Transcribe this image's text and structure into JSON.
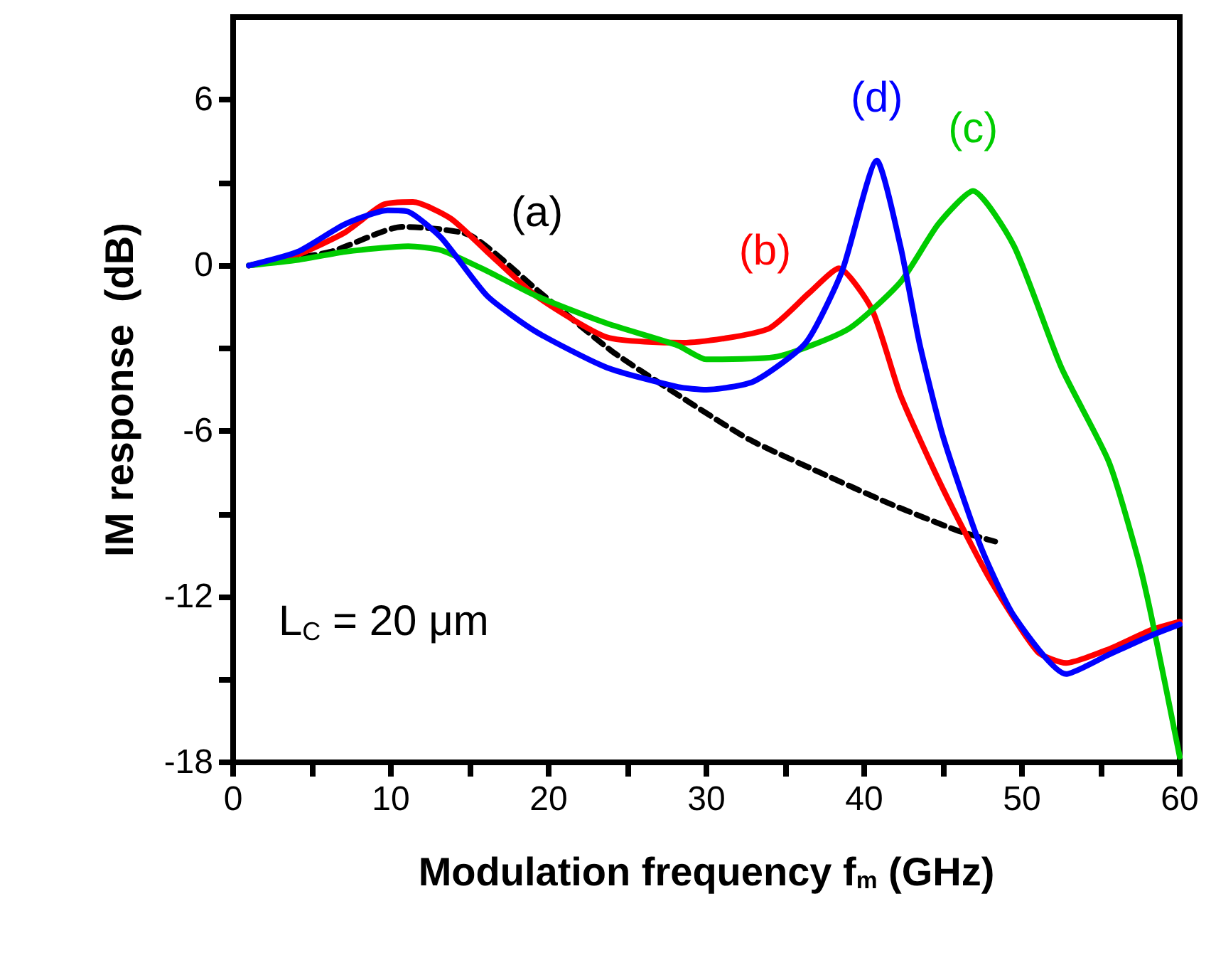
{
  "chart_data": {
    "type": "line",
    "xlabel": "Modulation frequency f$_{m}$ (GHz)",
    "ylabel": "IM response  (dB)",
    "xlim": [
      0,
      60
    ],
    "ylim": [
      -18,
      9
    ],
    "xticks": [
      0,
      {
        "value": 5,
        "label": null
      },
      10,
      {
        "value": 15,
        "label": null
      },
      20,
      {
        "value": 25,
        "label": null
      },
      30,
      {
        "value": 35,
        "label": null
      },
      40,
      {
        "value": 45,
        "label": null
      },
      50,
      {
        "value": 55,
        "label": null
      },
      60
    ],
    "yticks": [
      -18,
      {
        "value": -15,
        "label": null
      },
      -12,
      {
        "value": -9,
        "label": null
      },
      -6,
      {
        "value": -3,
        "label": null
      },
      0,
      {
        "value": 3,
        "label": null
      },
      6
    ],
    "grid": false,
    "marker": "none",
    "series": [
      {
        "name": "(a)",
        "color": "#000000",
        "line_style": "dashed",
        "x": [
          1,
          6.2,
          10.7,
          15,
          19.5,
          24,
          28.5,
          32.7,
          37.2,
          41.5,
          45.9,
          48.3
        ],
        "values": [
          0,
          0.5,
          1.4,
          1.1,
          -1.0,
          -3.1,
          -4.8,
          -6.3,
          -7.5,
          -8.6,
          -9.6,
          -10.0
        ]
      },
      {
        "name": "(b)",
        "color": "#ff0000",
        "line_style": "solid",
        "x": [
          1,
          4.1,
          7.1,
          9.5,
          11.4,
          13.8,
          16.1,
          19.2,
          23.7,
          28.5,
          33.9,
          36.5,
          38.4,
          40.5,
          42.3,
          45,
          48,
          51,
          52.8,
          55.5,
          58.2,
          60
        ],
        "values": [
          0,
          0.4,
          1.2,
          2.2,
          2.3,
          1.7,
          0.5,
          -1.1,
          -2.6,
          -2.8,
          -2.3,
          -1.0,
          -0.1,
          -1.6,
          -4.7,
          -8.1,
          -11.4,
          -14.0,
          -14.4,
          -13.9,
          -13.2,
          -12.9
        ]
      },
      {
        "name": "(c)",
        "color": "#00cc00",
        "line_style": "solid",
        "x": [
          1,
          4.1,
          7.1,
          11.1,
          13.2,
          16.1,
          19.2,
          23.7,
          28.2,
          30,
          34.5,
          39,
          42.3,
          44.7,
          46.9,
          49.5,
          52.5,
          55.5,
          57.3,
          58.2,
          60
        ],
        "values": [
          0,
          0.2,
          0.5,
          0.7,
          0.55,
          -0.2,
          -1.1,
          -2.1,
          -2.9,
          -3.4,
          -3.3,
          -2.3,
          -0.6,
          1.5,
          2.7,
          0.7,
          -3.7,
          -7.1,
          -10.5,
          -12.7,
          -17.8
        ]
      },
      {
        "name": "(d)",
        "color": "#0000ff",
        "line_style": "solid",
        "x": [
          1,
          4.1,
          7.1,
          9.8,
          11.1,
          13.2,
          16.1,
          19.2,
          23.7,
          28.2,
          30,
          33,
          36.3,
          38.6,
          40.8,
          42.3,
          43.5,
          45,
          47.4,
          49.5,
          52.8,
          55.5,
          58.2,
          60
        ],
        "values": [
          0,
          0.5,
          1.5,
          2.0,
          1.95,
          1.0,
          -1.1,
          -2.4,
          -3.7,
          -4.4,
          -4.5,
          -4.2,
          -2.8,
          -0.2,
          3.8,
          0.7,
          -2.8,
          -6.2,
          -10.2,
          -12.7,
          -14.8,
          -14.1,
          -13.4,
          -13.0
        ]
      }
    ],
    "annotations": [
      "L$_{C}$ = 20 μm"
    ]
  }
}
